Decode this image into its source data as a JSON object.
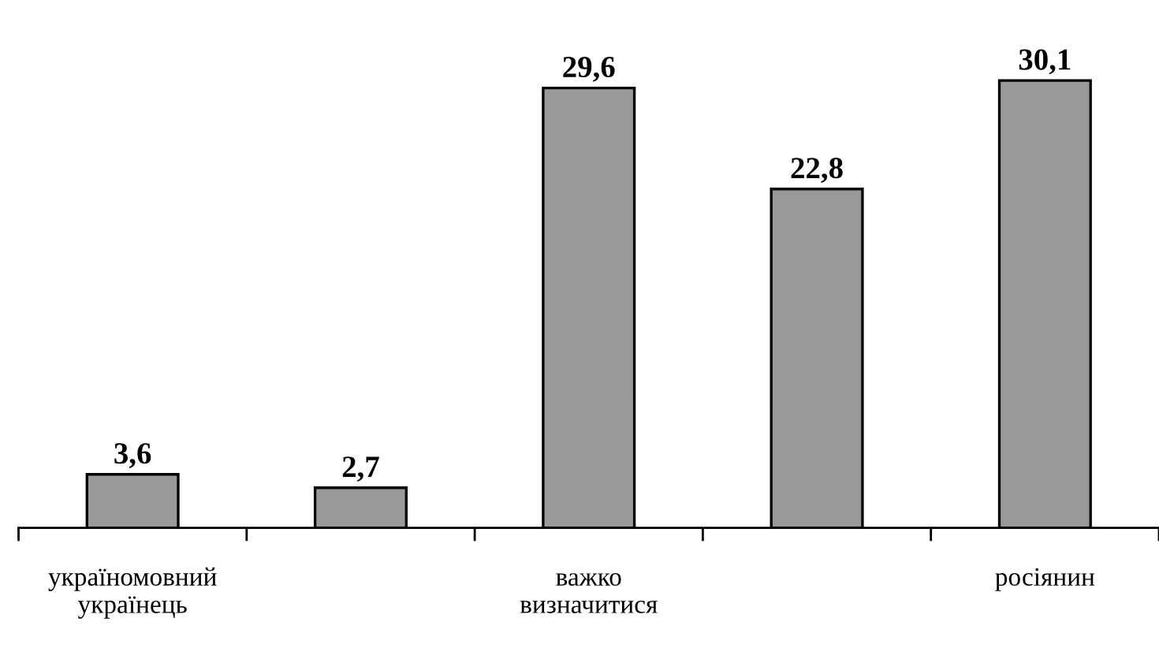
{
  "chart_data": {
    "type": "bar",
    "categories": [
      "україномовний\nукраїнець",
      null,
      "важко\nвизначитися",
      null,
      "росіянин"
    ],
    "values": [
      3.6,
      2.7,
      29.6,
      22.8,
      30.1
    ],
    "value_labels": [
      "3,6",
      "2,7",
      "29,6",
      "22,8",
      "30,1"
    ],
    "color": "#999999",
    "grid": false
  }
}
